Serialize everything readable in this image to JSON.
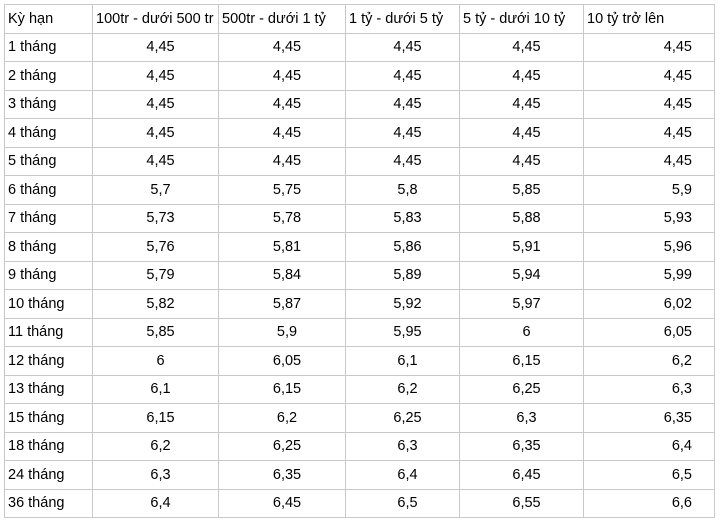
{
  "table": {
    "headers": [
      "Kỳ hạn",
      "100tr - dưới 500 tr",
      "500tr - dưới 1 tỷ",
      "1 tỷ - dưới 5 tỷ",
      "5 tỷ - dưới 10 tỷ",
      "10 tỷ trở lên"
    ],
    "rows": [
      [
        "1 tháng",
        "4,45",
        "4,45",
        "4,45",
        "4,45",
        "4,45"
      ],
      [
        "2 tháng",
        "4,45",
        "4,45",
        "4,45",
        "4,45",
        "4,45"
      ],
      [
        "3 tháng",
        "4,45",
        "4,45",
        "4,45",
        "4,45",
        "4,45"
      ],
      [
        "4 tháng",
        "4,45",
        "4,45",
        "4,45",
        "4,45",
        "4,45"
      ],
      [
        "5 tháng",
        "4,45",
        "4,45",
        "4,45",
        "4,45",
        "4,45"
      ],
      [
        "6 tháng",
        "5,7",
        "5,75",
        "5,8",
        "5,85",
        "5,9"
      ],
      [
        "7 tháng",
        "5,73",
        "5,78",
        "5,83",
        "5,88",
        "5,93"
      ],
      [
        "8 tháng",
        "5,76",
        "5,81",
        "5,86",
        "5,91",
        "5,96"
      ],
      [
        "9 tháng",
        "5,79",
        "5,84",
        "5,89",
        "5,94",
        "5,99"
      ],
      [
        "10 tháng",
        "5,82",
        "5,87",
        "5,92",
        "5,97",
        "6,02"
      ],
      [
        "11 tháng",
        "5,85",
        "5,9",
        "5,95",
        "6",
        "6,05"
      ],
      [
        "12 tháng",
        "6",
        "6,05",
        "6,1",
        "6,15",
        "6,2"
      ],
      [
        "13 tháng",
        "6,1",
        "6,15",
        "6,2",
        "6,25",
        "6,3"
      ],
      [
        "15 tháng",
        "6,15",
        "6,2",
        "6,25",
        "6,3",
        "6,35"
      ],
      [
        "18 tháng",
        "6,2",
        "6,25",
        "6,3",
        "6,35",
        "6,4"
      ],
      [
        "24 tháng",
        "6,3",
        "6,35",
        "6,4",
        "6,45",
        "6,5"
      ],
      [
        "36 tháng",
        "6,4",
        "6,45",
        "6,5",
        "6,55",
        "6,6"
      ]
    ]
  }
}
